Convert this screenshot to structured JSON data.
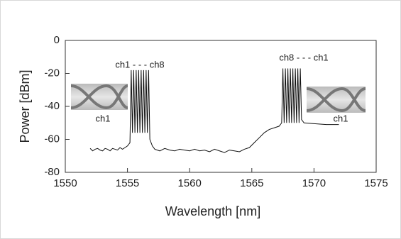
{
  "chart_data": {
    "type": "line",
    "x_label": "Wavelength [nm]",
    "y_label": "Power [dBm]",
    "annotations": [
      "ch1 - - - ch8",
      "ch8 - - - ch1",
      "ch1",
      "ch1"
    ],
    "xlim": [
      1550,
      1575
    ],
    "ylim": [
      -80,
      0
    ],
    "xticks": [
      1550,
      1555,
      1560,
      1565,
      1570,
      1575
    ],
    "yticks": [
      0,
      -20,
      -40,
      -60,
      -80
    ],
    "x": [
      1552,
      1552.2,
      1552.4,
      1552.6,
      1552.8,
      1553,
      1553.2,
      1553.4,
      1553.6,
      1553.8,
      1554,
      1554.2,
      1554.4,
      1554.6,
      1554.8,
      1555,
      1555.2,
      1555.3,
      1555.4,
      1555.5,
      1555.6,
      1555.7,
      1555.8,
      1555.9,
      1556,
      1556.1,
      1556.2,
      1556.3,
      1556.4,
      1556.5,
      1556.6,
      1556.7,
      1556.8,
      1557,
      1557.2,
      1557.6,
      1558,
      1558.4,
      1558.8,
      1559.2,
      1559.6,
      1560,
      1560.4,
      1560.8,
      1561.2,
      1561.6,
      1562,
      1562.4,
      1562.8,
      1563.2,
      1563.6,
      1564,
      1564.4,
      1564.8,
      1565.2,
      1565.6,
      1566,
      1566.4,
      1566.8,
      1567.2,
      1567.4,
      1567.5,
      1567.6,
      1567.7,
      1567.8,
      1567.9,
      1568,
      1568.1,
      1568.2,
      1568.3,
      1568.4,
      1568.5,
      1568.6,
      1568.7,
      1568.8,
      1568.9,
      1569,
      1569.2,
      1570,
      1571,
      1572
    ],
    "series": [
      {
        "color": "#111111",
        "values": [
          -65.5,
          -67,
          -66,
          -65.5,
          -66.5,
          -67,
          -65.5,
          -66,
          -67,
          -65.5,
          -66,
          -66.5,
          -65,
          -66,
          -65,
          -64,
          -62,
          -18,
          -56,
          -18,
          -56,
          -18,
          -56,
          -18,
          -56,
          -18,
          -56,
          -18,
          -56,
          -18,
          -56,
          -18,
          -60,
          -64,
          -66,
          -67,
          -65.5,
          -66.5,
          -67,
          -66,
          -66.5,
          -67,
          -66,
          -67,
          -66.5,
          -67.5,
          -66,
          -67,
          -68,
          -66.5,
          -67,
          -67.5,
          -66,
          -65,
          -62,
          -59,
          -56,
          -54,
          -53,
          -52,
          -50,
          -17,
          -50,
          -17,
          -50,
          -17,
          -50,
          -17,
          -50,
          -17,
          -50,
          -17,
          -50,
          -17,
          -50,
          -17,
          -48,
          -50,
          -50.5,
          -51,
          -51
        ]
      }
    ]
  }
}
